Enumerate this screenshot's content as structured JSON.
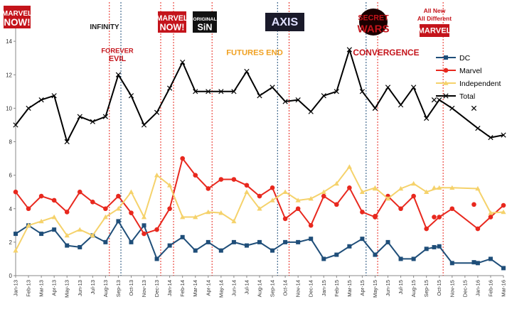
{
  "chart_data": {
    "type": "line",
    "title": "",
    "xlabel": "",
    "ylabel": "",
    "ylim": [
      0,
      16
    ],
    "yticks": [
      0,
      2,
      4,
      6,
      8,
      10,
      12,
      14,
      16
    ],
    "grid": false,
    "legend_position": "right",
    "categories": [
      "Jan-13",
      "Feb-13",
      "Mar-13",
      "Apr-13",
      "May-13",
      "Jun-13",
      "Jul-13",
      "Aug-13",
      "Sep-13",
      "Oct-13",
      "Nov-13",
      "Dec-13",
      "Jan-14",
      "Feb-14",
      "Mar-14",
      "Apr-14",
      "May-14",
      "Jun-14",
      "Jul-14",
      "Aug-14",
      "Sep-14",
      "Oct-14",
      "Nov-14",
      "Dec-14",
      "Jan-15",
      "Feb-15",
      "Mar-15",
      "Apr-15",
      "May-15",
      "Jun-15",
      "Jul-15",
      "Aug-15",
      "Sep-15",
      "Oct-15",
      "Nov-15",
      "Dec-15",
      "Jan-16",
      "Feb-16",
      "Mar-16"
    ],
    "series": [
      {
        "name": "DC",
        "color": "#1f4e79",
        "marker": "square",
        "values": [
          2.5,
          3.0,
          2.5,
          2.75,
          1.8,
          1.7,
          2.4,
          2.0,
          3.25,
          2.0,
          3.0,
          1.0,
          1.8,
          2.3,
          1.5,
          2.0,
          1.5,
          2.0,
          1.8,
          2.0,
          1.5,
          2.0,
          2.0,
          2.2,
          1.0,
          1.25,
          1.75,
          2.2,
          1.25,
          2.0,
          1.0,
          1.0,
          1.6,
          1.75,
          0.75,
          null,
          0.75,
          1.0,
          0.45
        ],
        "extra_points": [
          {
            "x": 28.0,
            "y": 1.25
          },
          {
            "x": 32.6,
            "y": 1.7
          },
          {
            "x": 35.7,
            "y": 0.8
          }
        ]
      },
      {
        "name": "Marvel",
        "color": "#e8281e",
        "marker": "circle",
        "values": [
          5.0,
          4.0,
          4.75,
          4.5,
          3.8,
          5.0,
          4.4,
          4.0,
          4.75,
          3.75,
          2.5,
          2.75,
          4.0,
          7.0,
          6.0,
          5.2,
          5.75,
          5.75,
          5.4,
          4.75,
          5.25,
          3.4,
          4.0,
          3.0,
          4.75,
          4.25,
          5.25,
          3.8,
          3.5,
          4.75,
          4.0,
          4.75,
          2.8,
          3.5,
          4.0,
          null,
          2.8,
          3.5,
          4.2
        ],
        "extra_points": [
          {
            "x": 28.0,
            "y": 3.55
          },
          {
            "x": 32.6,
            "y": 3.5
          },
          {
            "x": 35.7,
            "y": 4.25
          }
        ]
      },
      {
        "name": "Independent",
        "color": "#f5d26b",
        "marker": "triangle",
        "values": [
          1.5,
          3.0,
          3.25,
          3.5,
          2.4,
          2.75,
          2.4,
          3.5,
          4.0,
          5.0,
          3.5,
          6.0,
          5.4,
          3.5,
          3.5,
          3.8,
          3.75,
          3.25,
          5.0,
          4.0,
          4.5,
          5.0,
          4.5,
          4.6,
          5.0,
          5.5,
          6.5,
          5.0,
          5.25,
          4.6,
          5.2,
          5.5,
          5.0,
          5.25,
          5.25,
          null,
          5.2,
          3.75,
          3.8
        ],
        "extra_points": [
          {
            "x": 28.0,
            "y": 5.2
          },
          {
            "x": 32.6,
            "y": 5.25
          }
        ]
      },
      {
        "name": "Total",
        "color": "#000000",
        "marker": "x",
        "values": [
          9.0,
          10.0,
          10.5,
          10.75,
          8.0,
          9.5,
          9.2,
          9.5,
          12.0,
          10.75,
          9.0,
          9.75,
          11.2,
          12.75,
          11.0,
          11.0,
          11.0,
          11.0,
          12.2,
          10.75,
          11.25,
          10.4,
          10.5,
          9.8,
          10.75,
          11.0,
          13.5,
          11.0,
          10.0,
          11.25,
          10.2,
          11.25,
          9.4,
          10.5,
          10.0,
          null,
          8.8,
          8.25,
          8.4
        ],
        "extra_points": [
          {
            "x": 28.0,
            "y": 10.0
          },
          {
            "x": 32.6,
            "y": 10.5
          },
          {
            "x": 35.7,
            "y": 10.0
          }
        ]
      }
    ],
    "markers": [
      {
        "x": 7.3,
        "color": "#e8281e"
      },
      {
        "x": 8.2,
        "color": "#1f4e79"
      },
      {
        "x": 11.3,
        "color": "#e8281e"
      },
      {
        "x": 12.3,
        "color": "#e8281e"
      },
      {
        "x": 15.3,
        "color": "#e8281e"
      },
      {
        "x": 20.4,
        "color": "#1f4e79"
      },
      {
        "x": 21.3,
        "color": "#e8281e"
      },
      {
        "x": 27.3,
        "color": "#1f4e79"
      },
      {
        "x": 28.2,
        "color": "#e8281e"
      },
      {
        "x": 33.3,
        "color": "#e8281e"
      }
    ]
  },
  "event_logos": [
    {
      "name": "marvel-now-logo",
      "line1": "MARVEL",
      "line2": "NOW!",
      "bg": "#c4141b",
      "fg": "#ffffff"
    },
    {
      "name": "infinity-logo",
      "line1": "INFINITY",
      "line2": "",
      "bg": "#ffffff",
      "fg": "#1a1a1a"
    },
    {
      "name": "forever-evil-logo",
      "line1": "FOREVER",
      "line2": "EVIL",
      "bg": "#ffffff",
      "fg": "#c4141b"
    },
    {
      "name": "all-new-marvel-now-logo",
      "line1": "MARVEL",
      "line2": "NOW!",
      "bg": "#c4141b",
      "fg": "#ffffff"
    },
    {
      "name": "original-sin-logo",
      "line1": "ORIGINAL",
      "line2": "SiN",
      "bg": "#111111",
      "fg": "#ffffff"
    },
    {
      "name": "futures-end-logo",
      "line1": "FUTURES END",
      "line2": "",
      "bg": "#ffffff",
      "fg": "#f0a020"
    },
    {
      "name": "axis-logo",
      "line1": "AXIS",
      "line2": "",
      "bg": "#1a1a2a",
      "fg": "#e0e0ff"
    },
    {
      "name": "secret-wars-logo",
      "line1": "SECRET",
      "line2": "WARS",
      "bg": "#1a0000",
      "fg": "#c4141b"
    },
    {
      "name": "convergence-logo",
      "line1": "CONVERGENCE",
      "line2": "",
      "bg": "#ffffff",
      "fg": "#c4141b"
    },
    {
      "name": "all-new-all-different-logo",
      "line1": "MARVEL",
      "line2": "",
      "bg": "#c4141b",
      "fg": "#ffffff"
    }
  ],
  "all_new_caption": {
    "line1": "All New",
    "line2": "All Different"
  }
}
